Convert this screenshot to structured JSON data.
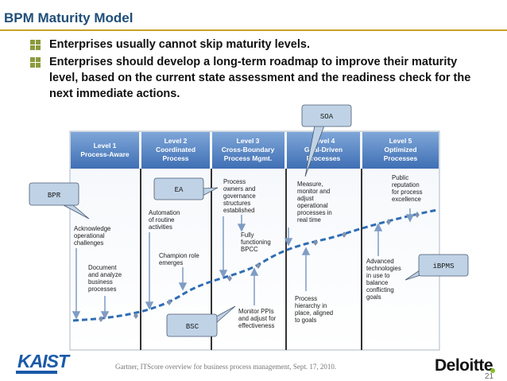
{
  "slide": {
    "title": "BPM Maturity Model",
    "bullets": [
      "Enterprises usually cannot skip maturity levels.",
      "Enterprises should develop a long-term roadmap to improve their maturity level, based on the current state assessment and the readiness check for the next immediate actions."
    ]
  },
  "diagram": {
    "levels": [
      {
        "line1": "Level 1",
        "line2": "Process-Aware",
        "line3": ""
      },
      {
        "line1": "Level 2",
        "line2": "Coordinated",
        "line3": "Process"
      },
      {
        "line1": "Level 3",
        "line2": "Cross-Boundary",
        "line3": "Process Mgmt."
      },
      {
        "line1": "Level 4",
        "line2": "Goal-Driven",
        "line3": "Processes"
      },
      {
        "line1": "Level 5",
        "line2": "Optimized",
        "line3": "Processes"
      }
    ],
    "annotations": [
      {
        "lines": [
          "Acknowledge",
          "operational",
          "challenges"
        ]
      },
      {
        "lines": [
          "Document",
          "and analyze",
          "business",
          "processes"
        ]
      },
      {
        "lines": [
          "Automation",
          "of routine",
          "activities"
        ]
      },
      {
        "lines": [
          "Champion role",
          "emerges"
        ]
      },
      {
        "lines": [
          "Process",
          "owners and",
          "governance",
          "structures",
          "established"
        ]
      },
      {
        "lines": [
          "Fully",
          "functioning",
          "BPCC"
        ]
      },
      {
        "lines": [
          "Monitor PPIs",
          "and adjust for",
          "effectiveness"
        ]
      },
      {
        "lines": [
          "Measure,",
          "monitor and",
          "adjust",
          "operational",
          "processes in",
          "real time"
        ]
      },
      {
        "lines": [
          "Process",
          "hierarchy in",
          "place, aligned",
          "to goals"
        ]
      },
      {
        "lines": [
          "Public",
          "reputation",
          "for process",
          "excellence"
        ]
      },
      {
        "lines": [
          "Advanced",
          "technologies",
          "in use to",
          "balance",
          "conflicting",
          "goals"
        ]
      }
    ],
    "callouts": {
      "bpr": "BPR",
      "ea": "EA",
      "soa": "SOA",
      "bsc": "BSC",
      "ibpms": "iBPMS"
    }
  },
  "footer": {
    "citation": "Gartner, ITScore overview for business process management, Sept. 17, 2010.",
    "kaist_logo": "KAIST",
    "deloitte_logo": "Deloitte",
    "page_number": "21"
  },
  "colors": {
    "title": "#1f4e79",
    "rule": "#c9a227",
    "level_header": "#4a7bbf",
    "curve": "#2e6db4",
    "callout_fill": "#c0d3e6"
  }
}
